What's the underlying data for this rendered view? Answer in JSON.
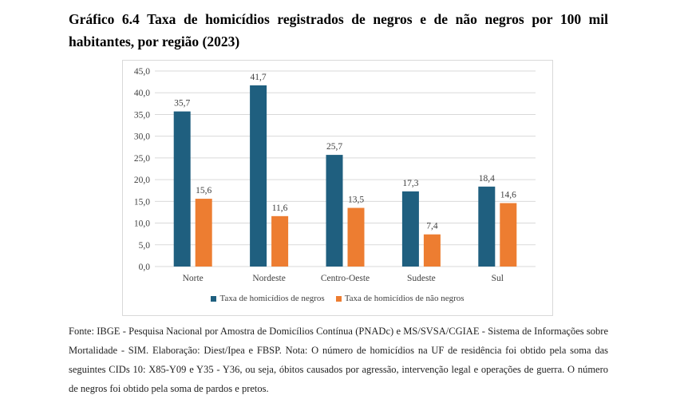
{
  "title": "Gráfico 6.4 Taxa de homicídios registrados de negros e de não negros por 100 mil habitantes, por região (2023)",
  "source": "Fonte: IBGE - Pesquisa Nacional por Amostra de Domicílios Contínua (PNADc) e MS/SVSA/CGIAE - Sistema de Informações sobre Mortalidade - SIM. Elaboração: Diest/Ipea e FBSP. Nota: O número de homicídios na UF de residência foi obtido pela soma das seguintes CIDs 10: X85-Y09 e Y35 - Y36, ou seja, óbitos causados por agressão, intervenção legal e operações de guerra. O número de negros foi obtido pela soma de pardos e pretos.",
  "colors": {
    "negros": "#1f5f7f",
    "nao_negros": "#ed7d31",
    "grid": "#d9d9d9"
  },
  "chart_data": {
    "type": "bar",
    "title": "",
    "xlabel": "",
    "ylabel": "",
    "categories": [
      "Norte",
      "Nordeste",
      "Centro-Oeste",
      "Sudeste",
      "Sul"
    ],
    "series": [
      {
        "name": "Taxa de homicídios de negros",
        "values": [
          35.7,
          41.7,
          25.7,
          17.3,
          18.4
        ],
        "labels": [
          "35,7",
          "41,7",
          "25,7",
          "17,3",
          "18,4"
        ]
      },
      {
        "name": "Taxa de homicídios de não negros",
        "values": [
          15.6,
          11.6,
          13.5,
          7.4,
          14.6
        ],
        "labels": [
          "15,6",
          "11,6",
          "13,5",
          "7,4",
          "14,6"
        ]
      }
    ],
    "ylim": [
      0,
      45
    ],
    "yticks": [
      "0,0",
      "5,0",
      "10,0",
      "15,0",
      "20,0",
      "25,0",
      "30,0",
      "35,0",
      "40,0",
      "45,0"
    ],
    "grid": true,
    "legend": "bottom"
  }
}
